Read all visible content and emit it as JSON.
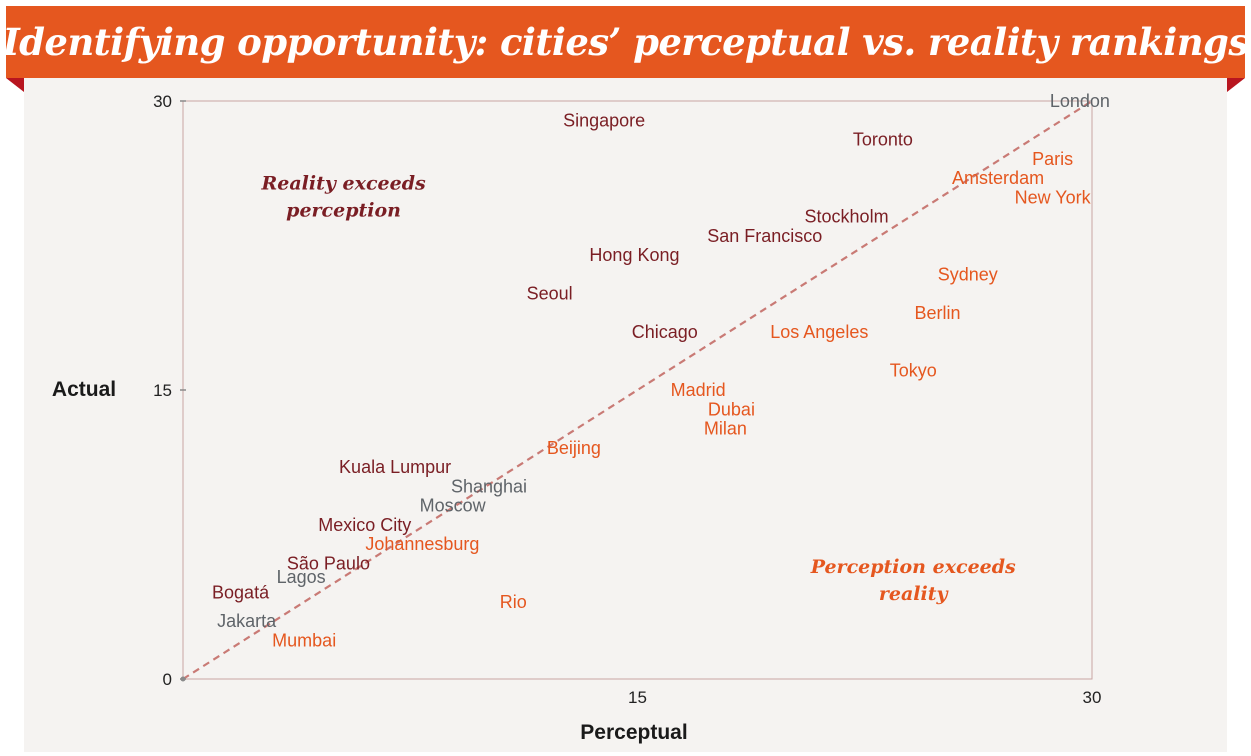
{
  "header": {
    "title": "Identifying opportunity: cities’ perceptual vs. reality rankings"
  },
  "colors": {
    "banner": "#e5571f",
    "fold": "#b8151f",
    "panel": "#f5f3f1",
    "reality_exceeds": "#7a1e24",
    "perception_exceeds": "#e5571f",
    "on_par": "#5f6469",
    "diagonal": "#c97a75",
    "plot_border": "#c9a6a3"
  },
  "chart_data": {
    "type": "scatter",
    "xlabel": "Perceptual",
    "ylabel": "Actual",
    "xlim": [
      0,
      30
    ],
    "ylim": [
      0,
      30
    ],
    "x_ticks": [
      "15",
      "30"
    ],
    "y_ticks": [
      "0",
      "15",
      "30"
    ],
    "diagonal_line": true,
    "annotations": [
      {
        "lines": [
          "Reality exceeds",
          "perception"
        ],
        "group": "reality_exceeds",
        "x": 5.3,
        "y": 25.4
      },
      {
        "lines": [
          "Perception exceeds",
          "reality"
        ],
        "group": "perception_exceeds",
        "x": 24.1,
        "y": 5.5
      }
    ],
    "points": [
      {
        "label": "London",
        "x": 29.6,
        "y": 30,
        "group": "on_par"
      },
      {
        "label": "Singapore",
        "x": 13.9,
        "y": 29,
        "group": "reality_exceeds"
      },
      {
        "label": "Toronto",
        "x": 23.1,
        "y": 28,
        "group": "reality_exceeds"
      },
      {
        "label": "Paris",
        "x": 28.7,
        "y": 27,
        "group": "perception_exceeds"
      },
      {
        "label": "Amsterdam",
        "x": 26.9,
        "y": 26,
        "group": "perception_exceeds"
      },
      {
        "label": "New York",
        "x": 28.7,
        "y": 25,
        "group": "perception_exceeds"
      },
      {
        "label": "Stockholm",
        "x": 21.9,
        "y": 24,
        "group": "reality_exceeds"
      },
      {
        "label": "San Francisco",
        "x": 19.2,
        "y": 23,
        "group": "reality_exceeds"
      },
      {
        "label": "Hong Kong",
        "x": 14.9,
        "y": 22,
        "group": "reality_exceeds"
      },
      {
        "label": "Sydney",
        "x": 25.9,
        "y": 21,
        "group": "perception_exceeds"
      },
      {
        "label": "Seoul",
        "x": 12.1,
        "y": 20,
        "group": "reality_exceeds"
      },
      {
        "label": "Berlin",
        "x": 24.9,
        "y": 19,
        "group": "perception_exceeds"
      },
      {
        "label": "Chicago",
        "x": 15.9,
        "y": 18,
        "group": "reality_exceeds"
      },
      {
        "label": "Los Angeles",
        "x": 21.0,
        "y": 18,
        "group": "perception_exceeds"
      },
      {
        "label": "Tokyo",
        "x": 24.1,
        "y": 16,
        "group": "perception_exceeds"
      },
      {
        "label": "Madrid",
        "x": 17.0,
        "y": 15,
        "group": "perception_exceeds"
      },
      {
        "label": "Dubai",
        "x": 18.1,
        "y": 14,
        "group": "perception_exceeds"
      },
      {
        "label": "Milan",
        "x": 17.9,
        "y": 13,
        "group": "perception_exceeds"
      },
      {
        "label": "Beijing",
        "x": 12.9,
        "y": 12,
        "group": "perception_exceeds"
      },
      {
        "label": "Kuala Lumpur",
        "x": 7.0,
        "y": 11,
        "group": "reality_exceeds"
      },
      {
        "label": "Shanghai",
        "x": 10.1,
        "y": 10,
        "group": "on_par"
      },
      {
        "label": "Moscow",
        "x": 8.9,
        "y": 9,
        "group": "on_par"
      },
      {
        "label": "Mexico City",
        "x": 6.0,
        "y": 8,
        "group": "reality_exceeds"
      },
      {
        "label": "Johannesburg",
        "x": 7.9,
        "y": 7,
        "group": "perception_exceeds"
      },
      {
        "label": "São Paulo",
        "x": 4.8,
        "y": 6,
        "group": "reality_exceeds"
      },
      {
        "label": "Lagos",
        "x": 3.9,
        "y": 5.3,
        "group": "on_par"
      },
      {
        "label": "Bogatá",
        "x": 1.9,
        "y": 4.5,
        "group": "reality_exceeds"
      },
      {
        "label": "Rio",
        "x": 10.9,
        "y": 4,
        "group": "perception_exceeds"
      },
      {
        "label": "Jakarta",
        "x": 2.1,
        "y": 3,
        "group": "on_par"
      },
      {
        "label": "Mumbai",
        "x": 4.0,
        "y": 2,
        "group": "perception_exceeds"
      }
    ]
  }
}
